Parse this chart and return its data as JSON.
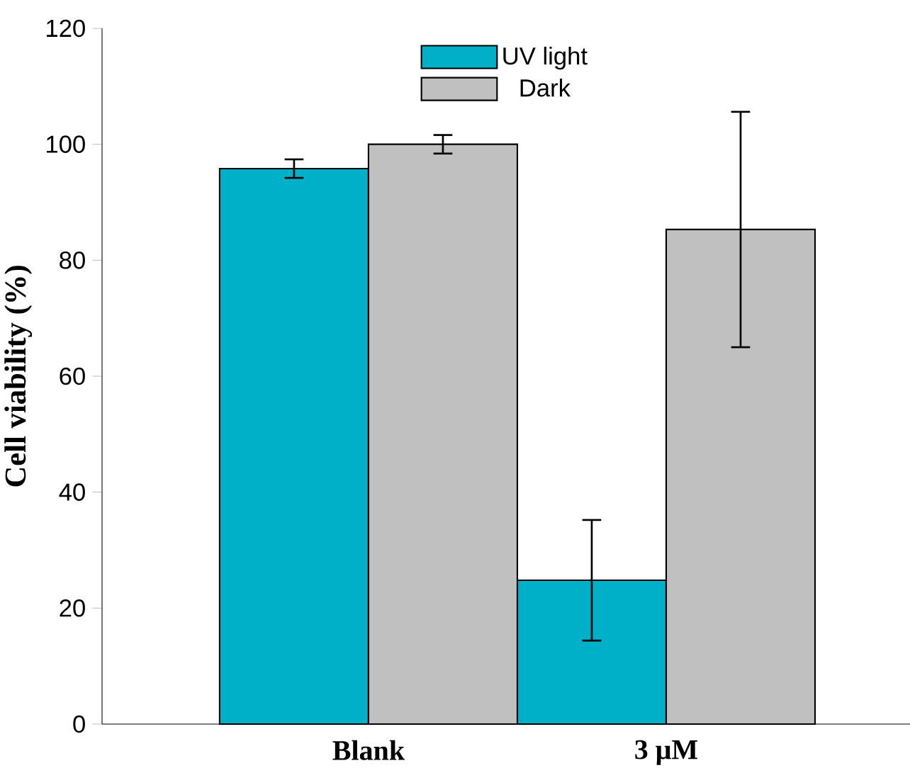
{
  "chart_data": {
    "type": "bar",
    "ylabel": "Cell viability (%)",
    "categories": [
      "Blank",
      "3 μM"
    ],
    "series": [
      {
        "name": "UV light",
        "color": "#00b0c8",
        "values": [
          95.8,
          24.8
        ],
        "errors": [
          1.6,
          10.4
        ]
      },
      {
        "name": "Dark",
        "color": "#c0c0c0",
        "values": [
          100,
          85.3
        ],
        "errors": [
          1.6,
          20.3
        ]
      }
    ],
    "ylim": [
      0,
      120
    ],
    "yticks": [
      0,
      20,
      40,
      60,
      80,
      100,
      120
    ],
    "grid": false,
    "legend": "top"
  }
}
